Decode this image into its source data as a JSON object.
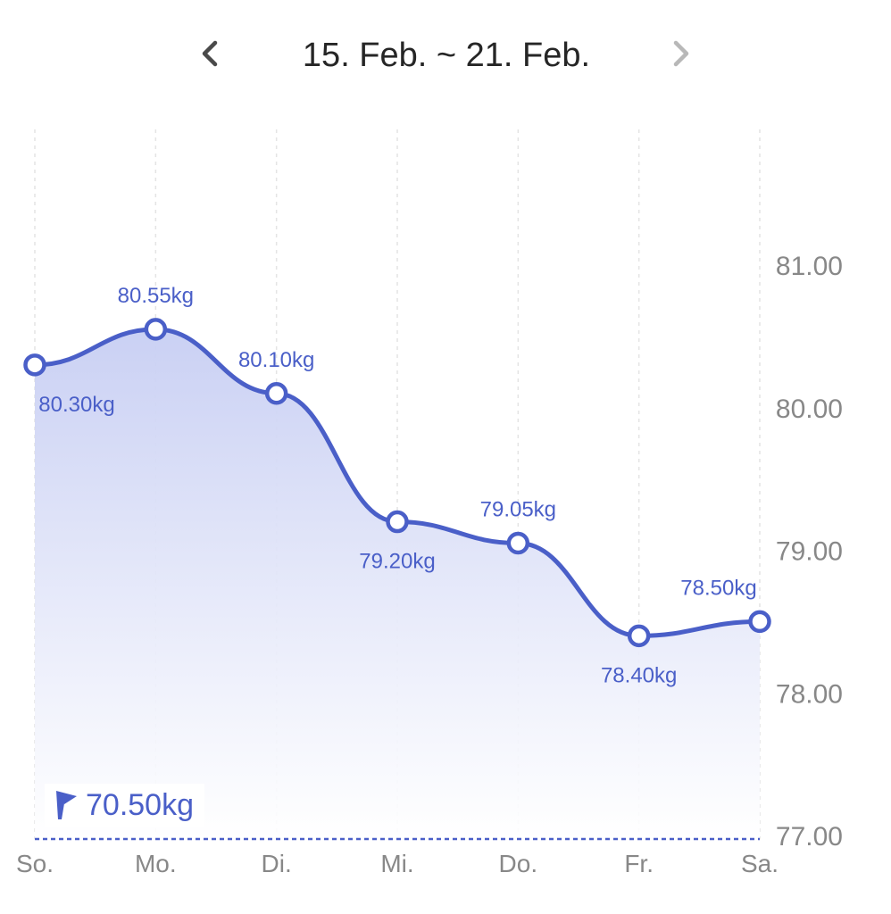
{
  "header": {
    "range": "15. Feb. ~ 21. Feb.",
    "prev_icon": "chevron-left-icon",
    "next_icon": "chevron-right-icon"
  },
  "colors": {
    "line": "#4a5fc8",
    "label": "#4a5fc8",
    "axis_text": "#888888",
    "grid": "#e4e4e4",
    "nav_active": "#4a4a4a",
    "nav_inactive": "#b8b8b8",
    "title": "#262626"
  },
  "goal": {
    "value": 70.5,
    "label": "70.50kg",
    "icon": "flag-icon"
  },
  "chart_data": {
    "type": "line",
    "categories": [
      "So.",
      "Mo.",
      "Di.",
      "Mi.",
      "Do.",
      "Fr.",
      "Sa."
    ],
    "series": [
      {
        "values": [
          80.3,
          80.55,
          80.1,
          79.2,
          79.05,
          78.4,
          78.5
        ],
        "labels": [
          "80.30kg",
          "80.55kg",
          "80.10kg",
          "79.20kg",
          "79.05kg",
          "78.40kg",
          "78.50kg"
        ],
        "label_positions": [
          "below",
          "above",
          "above",
          "below",
          "above",
          "below",
          "above"
        ]
      }
    ],
    "ylim": [
      77.0,
      81.0
    ],
    "yticks": [
      "77.00",
      "78.00",
      "79.00",
      "80.00",
      "81.00"
    ],
    "ytick_values": [
      77,
      78,
      79,
      80,
      81
    ],
    "y_axis_side": "right",
    "grid": "vertical-dashed",
    "area_fill": true
  }
}
